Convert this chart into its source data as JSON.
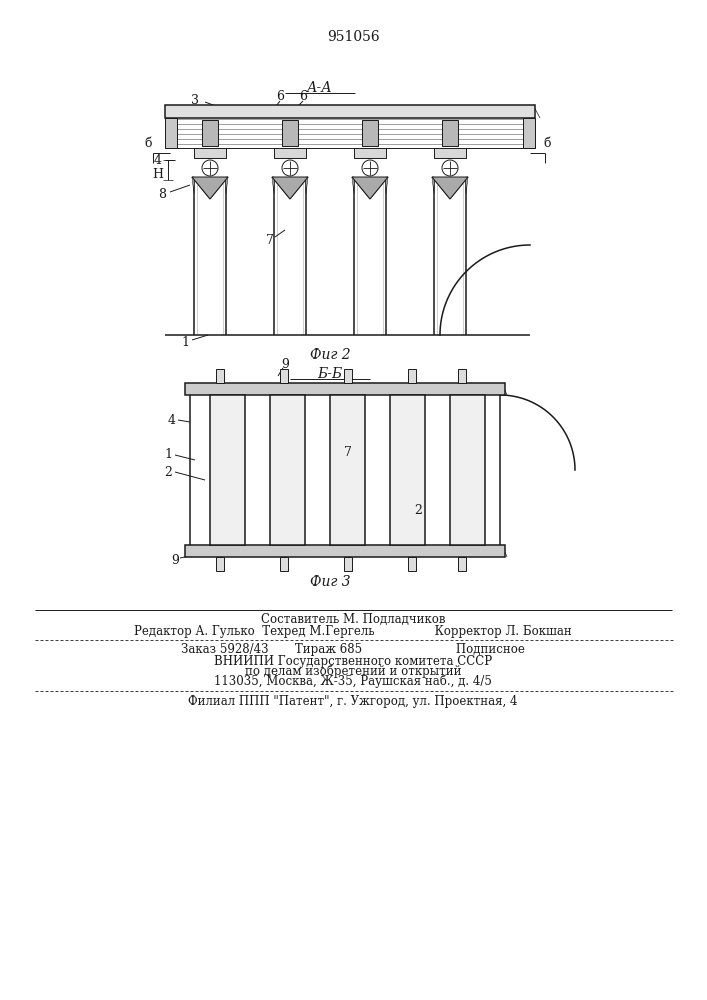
{
  "patent_number": "951056",
  "fig2_label": "А-А",
  "fig2_caption": "Фиг 2",
  "fig3_label": "Б-Б",
  "fig3_caption": "Фиг 3",
  "footer_lines": [
    "Составитель М. Подладчиков",
    "Редактор А. Гулько  Техред М.Гергель                Корректор Л. Бокшан",
    "Заказ 5928/43       Тираж 685                         Подписное",
    "ВНИИПИ Государственного комитета СССР",
    "по делам изобретений и открытий",
    "113035, Москва, Ж-35, Раушская наб., д. 4/5",
    "Филиал ППП \"Патент\", г. Ужгород, ул. Проектная, 4"
  ],
  "bg_color": "#ffffff",
  "line_color": "#1a1a1a"
}
